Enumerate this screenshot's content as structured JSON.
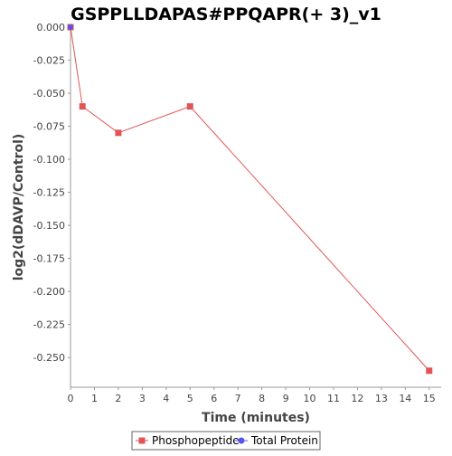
{
  "chart_data": {
    "type": "line",
    "title": "GSPPLLDAPAS#PPQAPR(+ 3)_v1",
    "xlabel": "Time (minutes)",
    "ylabel": "log2(dDAVP/Control)",
    "xlim": [
      0,
      15.5
    ],
    "ylim": [
      -0.2725,
      0.0
    ],
    "x_ticks": [
      "0",
      "1",
      "2",
      "3",
      "4",
      "5",
      "6",
      "7",
      "8",
      "9",
      "10",
      "11",
      "12",
      "13",
      "14",
      "15"
    ],
    "y_ticks": [
      "0.000",
      "-0.025",
      "-0.050",
      "-0.075",
      "-0.100",
      "-0.125",
      "-0.150",
      "-0.175",
      "-0.200",
      "-0.225",
      "-0.250"
    ],
    "grid": false,
    "legend_position": "bottom",
    "series": [
      {
        "name": "Phosphopeptide",
        "color": "#e05555",
        "marker": "square",
        "points": [
          {
            "x": 0,
            "y": 0.0
          },
          {
            "x": 0.5,
            "y": -0.06
          },
          {
            "x": 2,
            "y": -0.08
          },
          {
            "x": 5,
            "y": -0.06
          },
          {
            "x": 15,
            "y": -0.26
          }
        ]
      },
      {
        "name": "Total Protein",
        "color": "#5555ee",
        "marker": "circle",
        "points": [
          {
            "x": 0,
            "y": 0.0
          }
        ]
      }
    ]
  }
}
